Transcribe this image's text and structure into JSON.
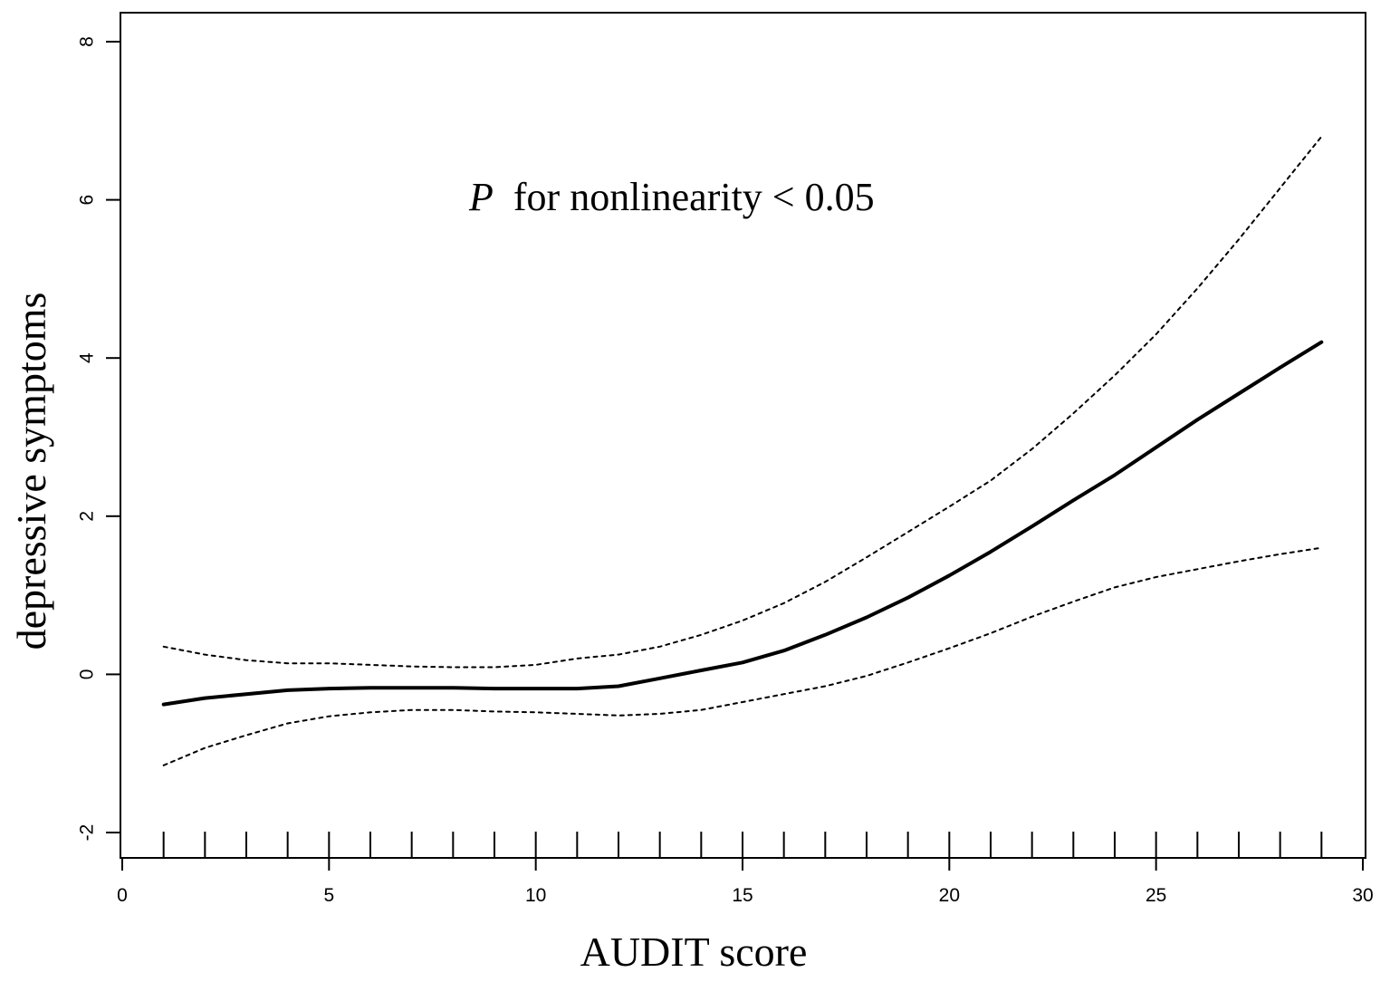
{
  "chart_data": {
    "type": "line",
    "title": "",
    "xlabel": "AUDIT score",
    "ylabel": "depressive symptoms",
    "xlim": [
      0,
      30
    ],
    "ylim": [
      -2,
      8
    ],
    "x_ticks": [
      0,
      5,
      10,
      15,
      20,
      25,
      30
    ],
    "y_ticks": [
      -2,
      0,
      2,
      4,
      6,
      8
    ],
    "grid": false,
    "legend": "none",
    "annotation": {
      "italic_part": "P",
      "text_part": " for nonlinearity < 0.05"
    },
    "rug_x": [
      1,
      2,
      3,
      4,
      5,
      6,
      7,
      8,
      9,
      10,
      11,
      12,
      13,
      14,
      15,
      16,
      17,
      18,
      19,
      20,
      21,
      22,
      23,
      24,
      25,
      26,
      27,
      28,
      29
    ],
    "series": [
      {
        "role": "estimate",
        "style": "solid",
        "color": "#000000",
        "x": [
          1,
          2,
          3,
          4,
          5,
          6,
          7,
          8,
          9,
          10,
          11,
          12,
          13,
          14,
          15,
          16,
          17,
          18,
          19,
          20,
          21,
          22,
          23,
          24,
          25,
          26,
          27,
          28,
          29
        ],
        "y": [
          -0.38,
          -0.3,
          -0.25,
          -0.2,
          -0.18,
          -0.17,
          -0.17,
          -0.17,
          -0.18,
          -0.18,
          -0.18,
          -0.15,
          -0.05,
          0.05,
          0.15,
          0.3,
          0.5,
          0.72,
          0.97,
          1.25,
          1.55,
          1.87,
          2.2,
          2.52,
          2.87,
          3.22,
          3.55,
          3.88,
          4.2
        ]
      },
      {
        "role": "upper-ci",
        "style": "dotted",
        "color": "#000000",
        "x": [
          1,
          2,
          3,
          4,
          5,
          6,
          7,
          8,
          9,
          10,
          11,
          12,
          13,
          14,
          15,
          16,
          17,
          18,
          19,
          20,
          21,
          22,
          23,
          24,
          25,
          26,
          27,
          28,
          29
        ],
        "y": [
          0.35,
          0.25,
          0.18,
          0.14,
          0.14,
          0.12,
          0.1,
          0.09,
          0.09,
          0.12,
          0.2,
          0.25,
          0.35,
          0.5,
          0.68,
          0.9,
          1.17,
          1.48,
          1.8,
          2.12,
          2.45,
          2.85,
          3.3,
          3.78,
          4.3,
          4.88,
          5.5,
          6.15,
          6.8
        ]
      },
      {
        "role": "lower-ci",
        "style": "dotted",
        "color": "#000000",
        "x": [
          1,
          2,
          3,
          4,
          5,
          6,
          7,
          8,
          9,
          10,
          11,
          12,
          13,
          14,
          15,
          16,
          17,
          18,
          19,
          20,
          21,
          22,
          23,
          24,
          25,
          26,
          27,
          28,
          29
        ],
        "y": [
          -1.15,
          -0.93,
          -0.77,
          -0.62,
          -0.53,
          -0.48,
          -0.45,
          -0.45,
          -0.47,
          -0.48,
          -0.5,
          -0.52,
          -0.5,
          -0.45,
          -0.35,
          -0.25,
          -0.15,
          -0.02,
          0.15,
          0.33,
          0.52,
          0.73,
          0.92,
          1.1,
          1.23,
          1.33,
          1.43,
          1.52,
          1.6
        ]
      }
    ]
  }
}
